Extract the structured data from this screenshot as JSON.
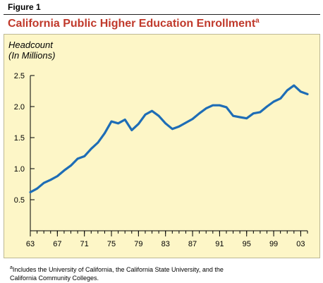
{
  "header": {
    "figure_label": "Figure 1"
  },
  "chart_data": {
    "type": "line",
    "title": "California Public Higher Education Enrollment",
    "title_superscript": "a",
    "ylabel_line1": "Headcount",
    "ylabel_line2": "(In Millions)",
    "xlabel": "",
    "x_tick_labels": [
      "63",
      "67",
      "71",
      "75",
      "79",
      "83",
      "87",
      "91",
      "95",
      "99",
      "03"
    ],
    "y_tick_labels": [
      "0.5",
      "1.0",
      "1.5",
      "2.0",
      "2.5"
    ],
    "ylim": [
      0,
      2.5
    ],
    "xlim": [
      1963,
      2004
    ],
    "grid": false,
    "series": [
      {
        "color": "#1e6db6",
        "x": [
          1963,
          1964,
          1965,
          1966,
          1967,
          1968,
          1969,
          1970,
          1971,
          1972,
          1973,
          1974,
          1975,
          1976,
          1977,
          1978,
          1979,
          1980,
          1981,
          1982,
          1983,
          1984,
          1985,
          1986,
          1987,
          1988,
          1989,
          1990,
          1991,
          1992,
          1993,
          1994,
          1995,
          1996,
          1997,
          1998,
          1999,
          2000,
          2001,
          2002,
          2003,
          2004
        ],
        "values": [
          0.62,
          0.68,
          0.77,
          0.82,
          0.88,
          0.97,
          1.05,
          1.16,
          1.2,
          1.32,
          1.42,
          1.57,
          1.76,
          1.73,
          1.79,
          1.62,
          1.72,
          1.87,
          1.93,
          1.85,
          1.73,
          1.64,
          1.68,
          1.74,
          1.8,
          1.89,
          1.97,
          2.02,
          2.02,
          1.99,
          1.85,
          1.83,
          1.81,
          1.89,
          1.91,
          2.0,
          2.08,
          2.13,
          2.26,
          2.34,
          2.24,
          2.2
        ]
      }
    ]
  },
  "footnote": {
    "marker": "a",
    "text": "Includes the University of California, the California State University, and the California Community Colleges."
  }
}
